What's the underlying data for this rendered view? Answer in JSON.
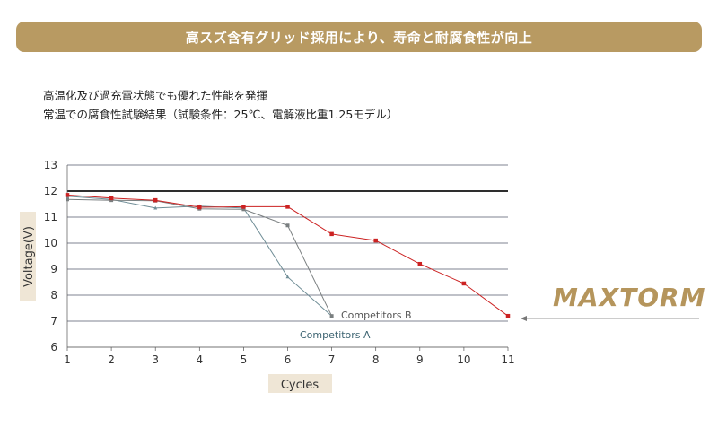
{
  "header": {
    "banner": "高スズ含有グリッド採用により、寿命と耐腐食性が向上",
    "subtitle1": "高温化及び過充電状態でも優れた性能を発揮",
    "subtitle2": "常温での腐食性試験結果（試験条件：25℃、電解液比重1.25モデル）"
  },
  "brand": "MAXTORM",
  "colors": {
    "maxtorm": "#cc2222",
    "competitors_a": "#6f8d96",
    "competitors_b": "#7a7f80",
    "brand": "#b5955c",
    "banner": "#b89a62"
  },
  "chart_data": {
    "type": "line",
    "xlabel": "Cycles",
    "ylabel": "Voltage(V)",
    "x": [
      1,
      2,
      3,
      4,
      5,
      6,
      7,
      8,
      9,
      10,
      11
    ],
    "xlim": [
      1,
      11
    ],
    "ylim": [
      6,
      13
    ],
    "yticks": [
      6,
      7,
      8,
      9,
      10,
      11,
      12,
      13
    ],
    "reference_line": 12,
    "grid": true,
    "series": [
      {
        "name": "MAXTORM",
        "x": [
          1,
          2,
          3,
          4,
          5,
          6,
          7,
          8,
          9,
          10,
          11
        ],
        "values": [
          11.85,
          11.73,
          11.65,
          11.38,
          11.4,
          11.4,
          10.35,
          10.1,
          9.2,
          8.45,
          7.2
        ]
      },
      {
        "name": "Competitors A",
        "x": [
          1,
          2,
          3,
          4,
          5,
          6,
          7
        ],
        "values": [
          11.8,
          11.68,
          11.35,
          11.42,
          11.35,
          8.7,
          7.2
        ]
      },
      {
        "name": "Competitors B",
        "x": [
          1,
          2,
          3,
          4,
          5,
          6,
          7
        ],
        "values": [
          11.68,
          11.65,
          11.63,
          11.32,
          11.3,
          10.68,
          7.2
        ]
      }
    ],
    "annotations": [
      {
        "text": "Competitors B",
        "series": "Competitors B"
      },
      {
        "text": "Competitors A",
        "series": "Competitors A"
      }
    ]
  }
}
